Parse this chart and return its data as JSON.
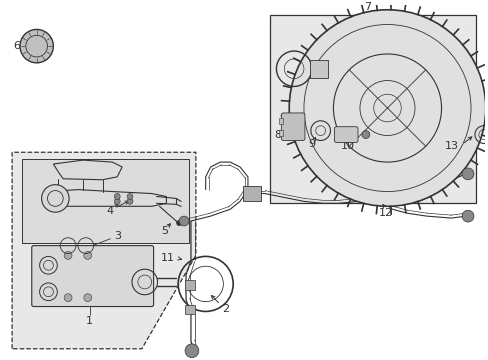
{
  "bg_color": "#ffffff",
  "left_panel_fill": "#e8e8e8",
  "inner_box_fill": "#dcdcdc",
  "right_box_fill": "#e8e8e8",
  "line_color": "#333333",
  "label_color": "#000000",
  "figsize": [
    4.89,
    3.6
  ],
  "dpi": 100
}
